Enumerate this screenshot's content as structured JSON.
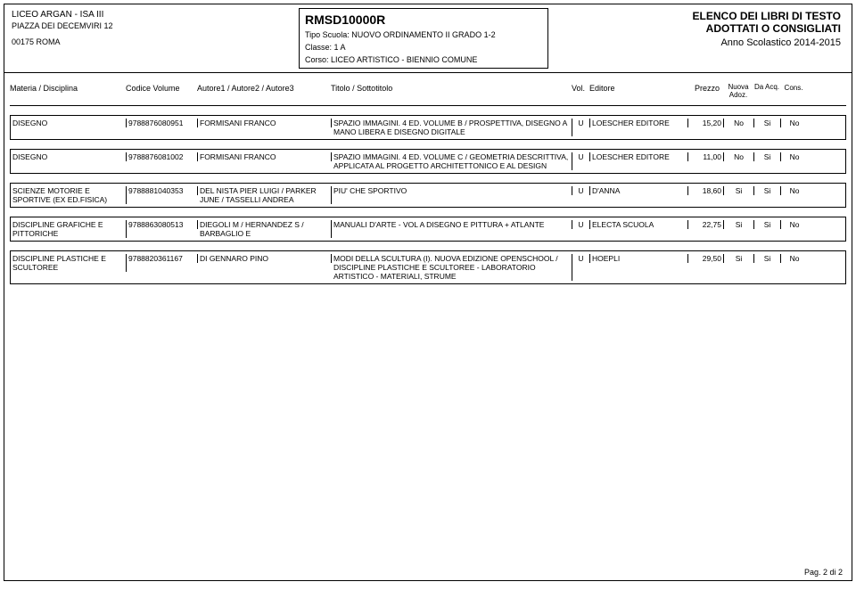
{
  "header": {
    "school_name": "LICEO ARGAN - ISA III",
    "address": "PIAZZA DEI DECEMVIRI 12",
    "cap_city": "00175  ROMA",
    "code": "RMSD10000R",
    "tipo_label": "Tipo Scuola:",
    "tipo_value": "NUOVO ORDINAMENTO II GRADO 1-2",
    "classe_label": "Classe:",
    "classe_value": "1 A",
    "corso_label": "Corso:",
    "corso_value": "LICEO ARTISTICO - BIENNIO COMUNE",
    "elenco_line1": "ELENCO DEI LIBRI DI TESTO",
    "elenco_line2": "ADOTTATI O CONSIGLIATI",
    "anno": "Anno Scolastico 2014-2015"
  },
  "columns": {
    "materia": "Materia / Disciplina",
    "codice": "Codice Volume",
    "autore": "Autore1 / Autore2 / Autore3",
    "titolo": "Titolo / Sottotitolo",
    "vol": "Vol.",
    "editore": "Editore",
    "prezzo": "Prezzo",
    "nuova": "Nuova Adoz.",
    "da": "Da Acq.",
    "cons": "Cons."
  },
  "rows": [
    {
      "materia": "DISEGNO",
      "codice": "9788876080951",
      "autore": "FORMISANI FRANCO",
      "titolo": "SPAZIO IMMAGINI. 4 ED. VOLUME B / PROSPETTIVA, DISEGNO A MANO LIBERA E DISEGNO DIGITALE",
      "vol": "U",
      "editore": "LOESCHER EDITORE",
      "prezzo": "15,20",
      "nuova": "No",
      "da": "Si",
      "cons": "No"
    },
    {
      "materia": "DISEGNO",
      "codice": "9788876081002",
      "autore": "FORMISANI FRANCO",
      "titolo": "SPAZIO IMMAGINI. 4 ED. VOLUME C / GEOMETRIA DESCRITTIVA, APPLICATA AL PROGETTO ARCHITETTONICO E AL DESIGN",
      "vol": "U",
      "editore": "LOESCHER EDITORE",
      "prezzo": "11,00",
      "nuova": "No",
      "da": "Si",
      "cons": "No"
    },
    {
      "materia": "SCIENZE MOTORIE E SPORTIVE (EX ED.FISICA)",
      "codice": "9788881040353",
      "autore": "DEL NISTA PIER LUIGI / PARKER JUNE / TASSELLI ANDREA",
      "titolo": "PIU' CHE SPORTIVO",
      "vol": "U",
      "editore": "D'ANNA",
      "prezzo": "18,60",
      "nuova": "Si",
      "da": "Si",
      "cons": "No"
    },
    {
      "materia": "DISCIPLINE GRAFICHE E PITTORICHE",
      "codice": "9788863080513",
      "autore": "DIEGOLI M / HERNANDEZ S / BARBAGLIO E",
      "titolo": "MANUALI D'ARTE - VOL A DISEGNO E PITTURA + ATLANTE",
      "vol": "U",
      "editore": "ELECTA SCUOLA",
      "prezzo": "22,75",
      "nuova": "Si",
      "da": "Si",
      "cons": "No"
    },
    {
      "materia": "DISCIPLINE PLASTICHE E SCULTOREE",
      "codice": "9788820361167",
      "autore": "DI GENNARO PINO",
      "titolo": "MODI DELLA SCULTURA (I). NUOVA EDIZIONE OPENSCHOOL / DISCIPLINE PLASTICHE E SCULTOREE - LABORATORIO ARTISTICO - MATERIALI, STRUME",
      "vol": "U",
      "editore": "HOEPLI",
      "prezzo": "29,50",
      "nuova": "Si",
      "da": "Si",
      "cons": "No"
    }
  ],
  "footer": "Pag. 2 di 2"
}
